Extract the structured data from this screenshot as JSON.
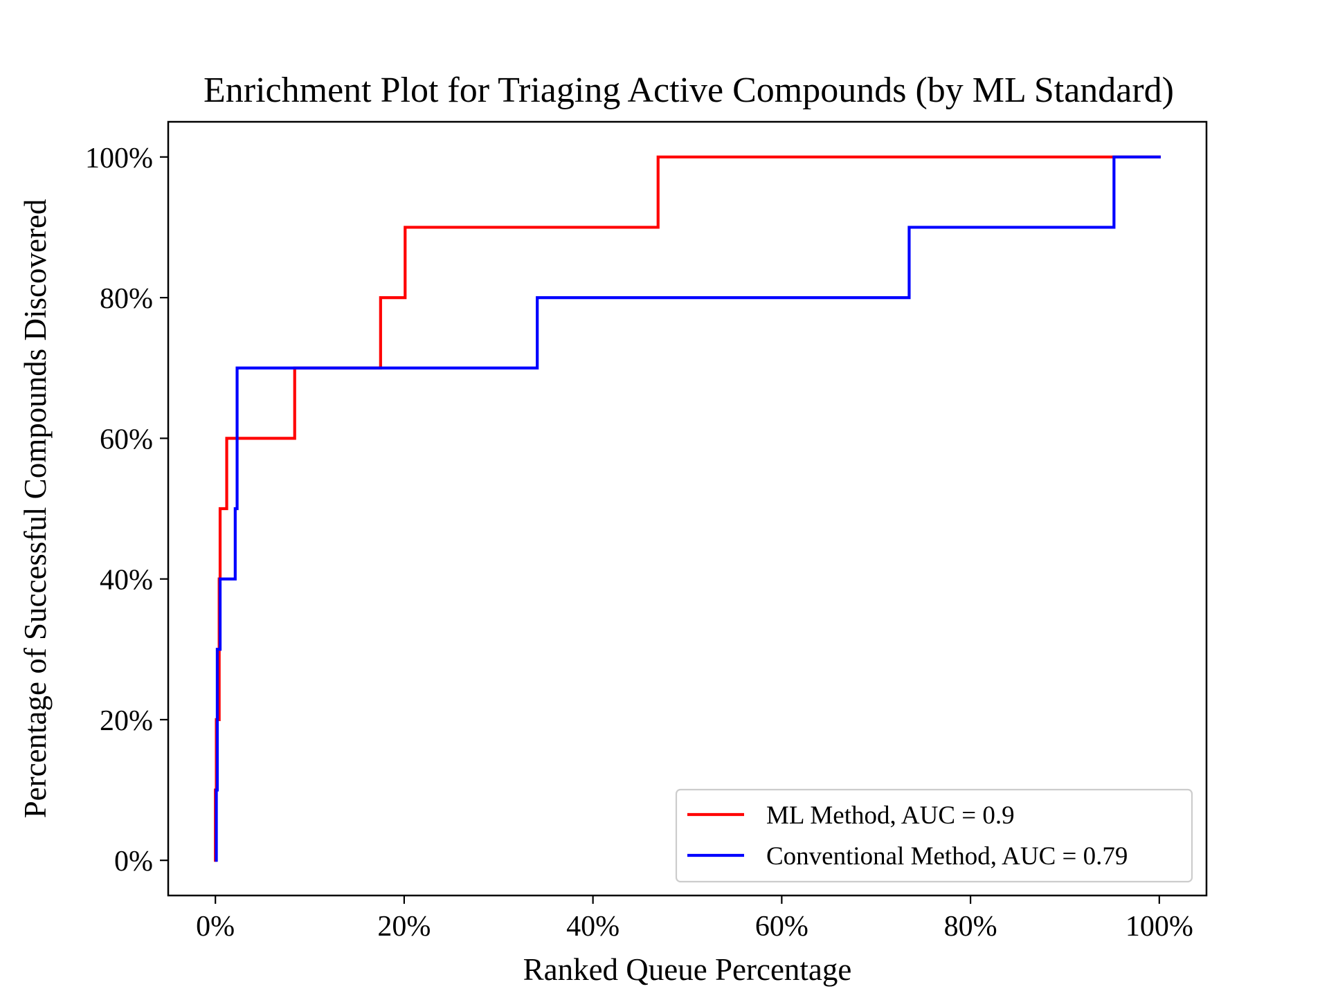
{
  "chart_data": {
    "type": "line",
    "title": "Enrichment Plot for Triaging Active Compounds (by ML Standard)",
    "xlabel": "Ranked Queue Percentage",
    "ylabel": "Percentage of Successful Compounds Discovered",
    "xlim": [
      -5,
      105
    ],
    "ylim": [
      -5,
      105
    ],
    "x_ticks": [
      0,
      20,
      40,
      60,
      80,
      100
    ],
    "x_tick_labels": [
      "0%",
      "20%",
      "40%",
      "60%",
      "80%",
      "100%"
    ],
    "y_ticks": [
      0,
      20,
      40,
      60,
      80,
      100
    ],
    "y_tick_labels": [
      "0%",
      "20%",
      "40%",
      "60%",
      "80%",
      "100%"
    ],
    "grid": false,
    "legend_position": "lower-right",
    "series": [
      {
        "name": "ML Method, AUC = 0.9",
        "color": "#ff0000",
        "x": [
          0,
          0,
          0.1,
          0.1,
          0.4,
          0.4,
          0.5,
          0.5,
          0.6,
          0.6,
          1.2,
          1.2,
          8.4,
          8.4,
          17.5,
          17.5,
          20.1,
          20.1,
          46.9,
          46.9,
          95.2,
          100
        ],
        "y": [
          0,
          10,
          10,
          20,
          20,
          40,
          40,
          50,
          50,
          50,
          50,
          60,
          60,
          70,
          70,
          80,
          80,
          90,
          90,
          100,
          100,
          100
        ]
      },
      {
        "name": "Conventional Method, AUC = 0.79",
        "color": "#0000ff",
        "x": [
          0.1,
          0.1,
          0.2,
          0.2,
          0.3,
          0.3,
          0.5,
          0.5,
          2.1,
          2.1,
          2.3,
          2.3,
          34.1,
          34.1,
          73.5,
          73.5,
          95.2,
          95.2,
          100
        ],
        "y": [
          0,
          10,
          10,
          30,
          30,
          30,
          30,
          40,
          40,
          50,
          50,
          70,
          70,
          80,
          80,
          90,
          90,
          100,
          100
        ]
      }
    ]
  }
}
